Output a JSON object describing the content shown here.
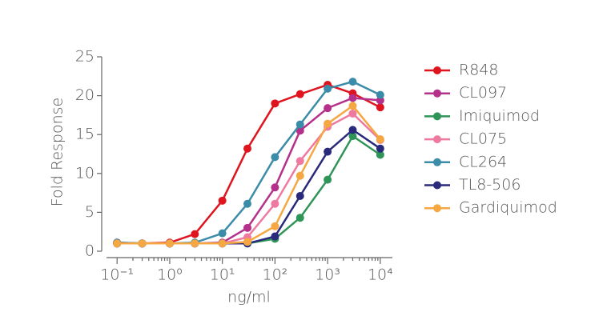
{
  "chart_data": {
    "type": "line",
    "xlabel": "ng/ml",
    "ylabel": "Fold Response",
    "xscale": "log",
    "x": [
      0.1,
      0.3,
      1,
      3,
      10,
      30,
      100,
      300,
      1000,
      3000,
      10000
    ],
    "xlim": [
      0.063,
      17000
    ],
    "xticks": [
      {
        "value": 0.1,
        "label": "10⁻¹"
      },
      {
        "value": 1,
        "label": "10⁰"
      },
      {
        "value": 10,
        "label": "10¹"
      },
      {
        "value": 100,
        "label": "10²"
      },
      {
        "value": 1000,
        "label": "10³"
      },
      {
        "value": 10000,
        "label": "10⁴"
      }
    ],
    "xminorticks": [
      0.2,
      0.3,
      0.4,
      0.5,
      0.6,
      0.7,
      0.8,
      0.9,
      2,
      3,
      4,
      5,
      6,
      7,
      8,
      9,
      20,
      30,
      40,
      50,
      60,
      70,
      80,
      90,
      200,
      300,
      400,
      500,
      600,
      700,
      800,
      900,
      2000,
      3000,
      4000,
      5000,
      6000,
      7000,
      8000,
      9000
    ],
    "ylim": [
      0,
      25
    ],
    "yticks": [
      0,
      5,
      10,
      15,
      20,
      25
    ],
    "legend": "right",
    "series": [
      {
        "name": "R848",
        "color": "#e0141e",
        "values": [
          1.1,
          1.0,
          1.1,
          2.2,
          6.5,
          13.2,
          19.0,
          20.2,
          21.4,
          20.3,
          18.5
        ]
      },
      {
        "name": "CL097",
        "color": "#b4308a",
        "values": [
          1.0,
          1.0,
          1.0,
          1.0,
          1.1,
          3.0,
          8.2,
          15.5,
          18.4,
          19.7,
          19.4
        ]
      },
      {
        "name": "Imiquimod",
        "color": "#2f9457",
        "values": [
          1.0,
          1.0,
          1.0,
          1.0,
          1.0,
          1.0,
          1.6,
          4.3,
          9.2,
          14.8,
          12.4
        ]
      },
      {
        "name": "CL075",
        "color": "#ee7aa0",
        "values": [
          1.0,
          1.0,
          1.0,
          1.0,
          1.0,
          1.8,
          6.1,
          11.6,
          16.0,
          17.7,
          14.3
        ]
      },
      {
        "name": "CL264",
        "color": "#3b8ca8",
        "values": [
          1.1,
          1.0,
          1.0,
          1.1,
          2.3,
          6.1,
          12.1,
          16.3,
          20.9,
          21.8,
          20.1
        ]
      },
      {
        "name": "TL8-506",
        "color": "#2a2a7c",
        "values": [
          1.0,
          1.0,
          1.0,
          1.0,
          1.0,
          1.0,
          1.9,
          7.1,
          12.8,
          15.6,
          13.2
        ]
      },
      {
        "name": "Gardiquimod",
        "color": "#f5a742",
        "values": [
          1.0,
          1.0,
          1.0,
          1.0,
          1.0,
          1.2,
          3.2,
          9.7,
          16.4,
          18.7,
          14.4
        ]
      }
    ]
  }
}
